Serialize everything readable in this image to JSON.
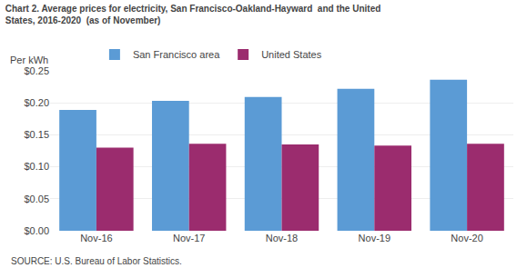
{
  "chart_data": {
    "type": "bar",
    "title": "Chart 2. Average prices for electricity, San Francisco-Oakland-Hayward  and the United\nStates, 2016-2020  (as of November)",
    "ylabel": "Per kWh",
    "annotations": [
      "SOURCE: U.S. Bureau of Labor Statistics."
    ],
    "categories": [
      "Nov-16",
      "Nov-17",
      "Nov-18",
      "Nov-19",
      "Nov-20"
    ],
    "series": [
      {
        "name": "San Francisco area",
        "color": "#5b9bd5",
        "values": [
          0.189,
          0.203,
          0.209,
          0.222,
          0.236
        ]
      },
      {
        "name": "United States",
        "color": "#9b2c6e",
        "values": [
          0.13,
          0.136,
          0.135,
          0.133,
          0.136
        ]
      }
    ],
    "ylim": [
      0,
      0.25
    ],
    "yticks": [
      {
        "value": 0.0,
        "label": "$0.00"
      },
      {
        "value": 0.05,
        "label": "$0.05"
      },
      {
        "value": 0.1,
        "label": "$0.10"
      },
      {
        "value": 0.15,
        "label": "$0.15"
      },
      {
        "value": 0.2,
        "label": "$0.20"
      },
      {
        "value": 0.25,
        "label": "$0.25"
      }
    ],
    "grid": true,
    "legend": "upper left"
  }
}
